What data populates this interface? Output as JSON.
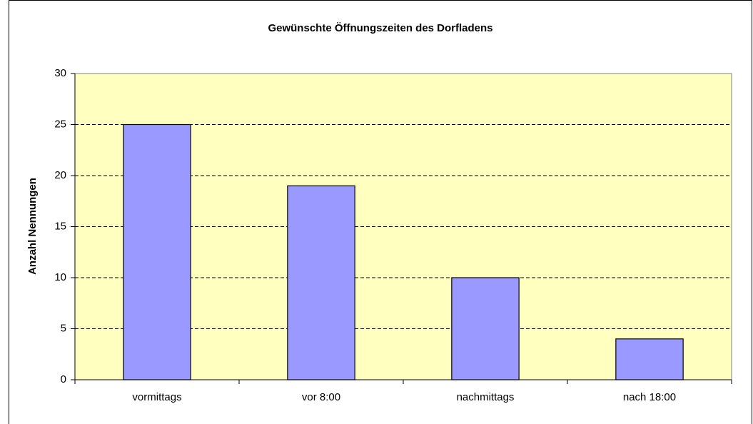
{
  "chart_data": {
    "type": "bar",
    "title": "Gewünschte Öffnungszeiten des Dorfladens",
    "y_label": "Anzahl Nennungen",
    "categories": [
      "vormittags",
      "vor 8:00",
      "nachmittags",
      "nach 18:00"
    ],
    "values": [
      25,
      19,
      10,
      4
    ],
    "color": "#9999ff",
    "ylim": [
      0,
      30
    ],
    "yticks": [
      0,
      5,
      10,
      15,
      20,
      25,
      30
    ],
    "grid": true
  }
}
